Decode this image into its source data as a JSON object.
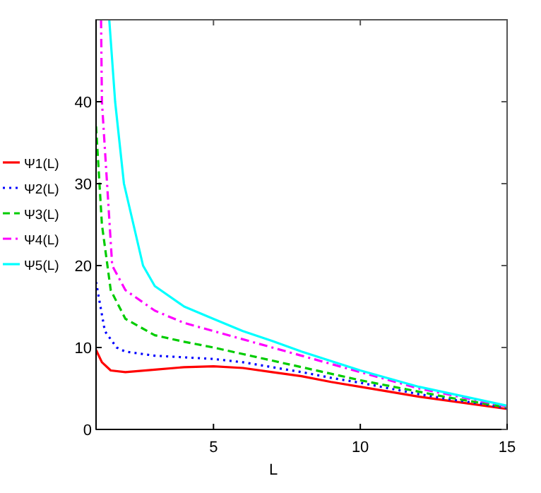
{
  "chart_data": {
    "type": "line",
    "xlabel": "L",
    "xlim": [
      1,
      15
    ],
    "xticks": [
      5,
      10,
      15
    ],
    "ylim": [
      0,
      50
    ],
    "yticks": [
      0,
      10,
      20,
      30,
      40
    ],
    "grid": false,
    "legend": "left",
    "series": [
      {
        "name": "Ψ1(L)",
        "color": "#ff0000",
        "line_style": "solid",
        "x": [
          1,
          1.2,
          1.5,
          2,
          3,
          4,
          5,
          6,
          7,
          8,
          9,
          10,
          11,
          12,
          13,
          14,
          15
        ],
        "values": [
          9.7,
          8.2,
          7.2,
          7,
          7.3,
          7.6,
          7.7,
          7.5,
          7,
          6.5,
          5.8,
          5.2,
          4.6,
          4,
          3.5,
          3,
          2.5
        ]
      },
      {
        "name": "Ψ2(L)",
        "color": "#0000ff",
        "line_style": "dotted",
        "x": [
          1,
          1.3,
          1.7,
          2,
          3,
          4,
          5,
          6,
          7,
          8,
          9,
          10,
          11,
          12,
          13,
          14,
          15
        ],
        "values": [
          18,
          12,
          10,
          9.5,
          9,
          8.8,
          8.6,
          8.2,
          7.6,
          7,
          6.3,
          5.7,
          5,
          4.3,
          3.7,
          3.2,
          2.6
        ]
      },
      {
        "name": "Ψ3(L)",
        "color": "#00cc00",
        "line_style": "dashed",
        "x": [
          1,
          1.2,
          1.5,
          2,
          3,
          4,
          5,
          6,
          7,
          8,
          9,
          10,
          11,
          12,
          13,
          14,
          15
        ],
        "values": [
          37,
          25,
          17,
          13.5,
          11.5,
          10.7,
          10,
          9.2,
          8.4,
          7.6,
          6.8,
          6,
          5.3,
          4.6,
          3.9,
          3.3,
          2.7
        ]
      },
      {
        "name": "Ψ4(L)",
        "color": "#ff00ff",
        "line_style": "dashdot",
        "x": [
          1.17,
          1.2,
          1.55,
          2,
          3,
          4,
          5,
          6,
          7,
          8,
          10,
          12,
          15
        ],
        "values": [
          50,
          40,
          20,
          17,
          14.5,
          13,
          12,
          11,
          10,
          9,
          7,
          5,
          2.8
        ]
      },
      {
        "name": "Ψ5(L)",
        "color": "#00ffff",
        "line_style": "solid",
        "x": [
          1.45,
          1.65,
          1.95,
          2.6,
          3,
          4,
          5,
          6,
          7,
          8,
          10,
          12,
          15
        ],
        "values": [
          50,
          40,
          30,
          20,
          17.5,
          15,
          13.5,
          12,
          10.8,
          9.5,
          7.2,
          5.2,
          2.9
        ]
      }
    ]
  }
}
